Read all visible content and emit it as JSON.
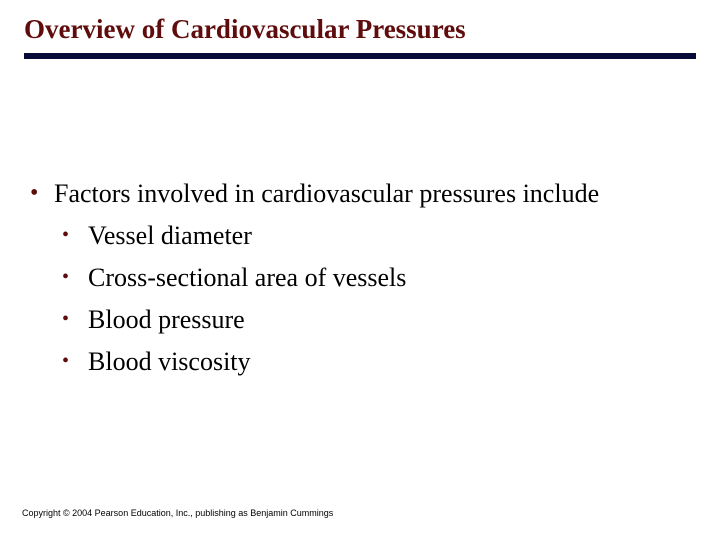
{
  "title": {
    "text": "Overview of Cardiovascular Pressures",
    "color": "#5f0c0c",
    "fontsize": 27
  },
  "rule": {
    "color": "#0a0a3a"
  },
  "body": {
    "lvl1": {
      "bullet": "•",
      "text": "Factors involved in cardiovascular pressures include",
      "bullet_color": "#5f0c0c"
    },
    "lvl2": [
      {
        "bullet": "•",
        "text": "Vessel diameter"
      },
      {
        "bullet": "•",
        "text": "Cross-sectional area of vessels"
      },
      {
        "bullet": "•",
        "text": "Blood pressure"
      },
      {
        "bullet": "•",
        "text": "Blood viscosity"
      }
    ],
    "lvl2_bullet_color": "#5f0c0c"
  },
  "copyright": "Copyright © 2004 Pearson Education, Inc., publishing as Benjamin Cummings"
}
